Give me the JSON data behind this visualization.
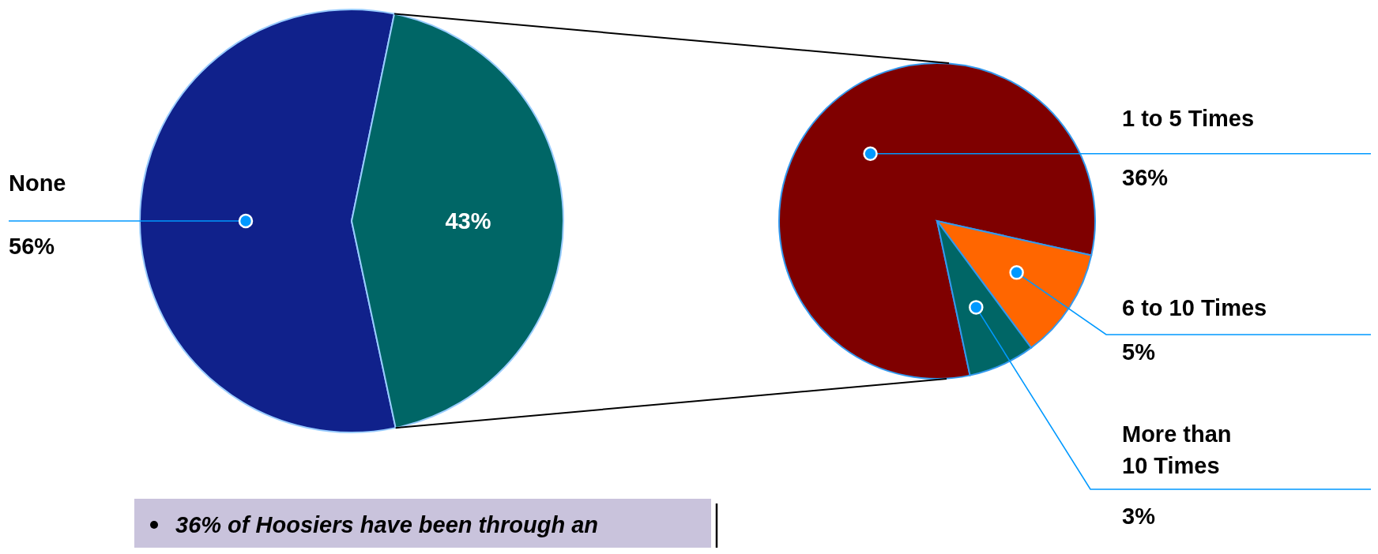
{
  "chart_data": [
    {
      "type": "pie",
      "categories": [
        "None",
        null
      ],
      "values": [
        56,
        43
      ],
      "colors": [
        "#10218b",
        "#006666"
      ],
      "value_labels": [
        "56%",
        "43%"
      ],
      "annotations": [
        "36% of Hoosiers have been through an"
      ]
    },
    {
      "type": "pie",
      "categories": [
        "1 to 5 Times",
        "6 to 10 Times",
        "More than 10 Times"
      ],
      "values": [
        36,
        5,
        3
      ],
      "colors": [
        "#7f0000",
        "#ff6600",
        "#006666"
      ],
      "value_labels": [
        "36%",
        "5%",
        "3%"
      ]
    }
  ]
}
